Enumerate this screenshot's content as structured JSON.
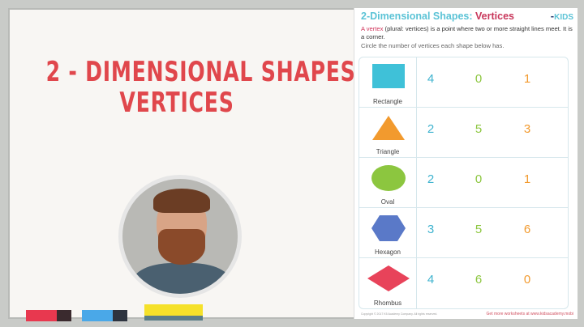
{
  "slide": {
    "title_line1": "2 - DIMENSIONAL SHAPES:",
    "title_line2": "VERTICES"
  },
  "worksheet": {
    "title": "2-Dimensional Shapes:",
    "title_accent": "Vertices",
    "logo": "KIDS",
    "definition_term": "A vertex",
    "definition_rest": " (plural: vertices) is a point where two or more straight lines meet. It is a corner.",
    "instruction": "Circle the number of vertices each shape below has.",
    "rows": [
      {
        "shape": "Rectangle",
        "color": "#3fc1d8",
        "options": [
          "4",
          "0",
          "1"
        ]
      },
      {
        "shape": "Triangle",
        "color": "#f29a2e",
        "options": [
          "2",
          "5",
          "3"
        ]
      },
      {
        "shape": "Oval",
        "color": "#8cc63f",
        "options": [
          "2",
          "0",
          "1"
        ]
      },
      {
        "shape": "Hexagon",
        "color": "#5a79c8",
        "options": [
          "3",
          "5",
          "6"
        ]
      },
      {
        "shape": "Rhombus",
        "color": "#e8435a",
        "options": [
          "4",
          "6",
          "0"
        ]
      }
    ],
    "option_colors": [
      "#3fb3cf",
      "#8cc63f",
      "#f29a2e"
    ],
    "footer_left": "Copyright © 2017 K5 Academy Company. All rights reserved.",
    "footer_right": "Get more worksheets at www.kidsacademy.mobi"
  },
  "colors": {
    "title": "#e0474c",
    "markers": [
      "#e8384f",
      "#4aa8e8",
      "#f5e12a"
    ]
  }
}
